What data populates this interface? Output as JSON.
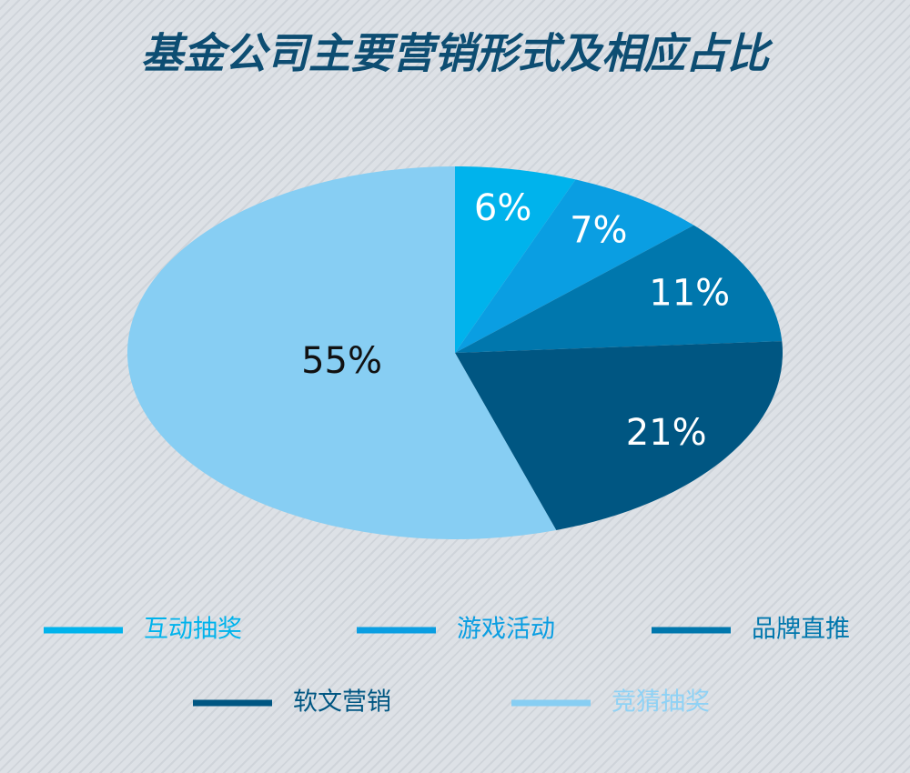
{
  "chart_data": {
    "type": "pie",
    "title": "基金公司主要营销形式及相应占比",
    "categories": [
      "互动抽奖",
      "游戏活动",
      "品牌直推",
      "软文营销",
      "竞猜抽奖"
    ],
    "values": [
      6,
      7,
      11,
      21,
      55
    ],
    "value_labels": [
      "6%",
      "7%",
      "11%",
      "21%",
      "55%"
    ],
    "colors": [
      "#00b3ec",
      "#0a9ee2",
      "#0077ad",
      "#005682",
      "#87cef3"
    ],
    "legend": "bottom"
  }
}
